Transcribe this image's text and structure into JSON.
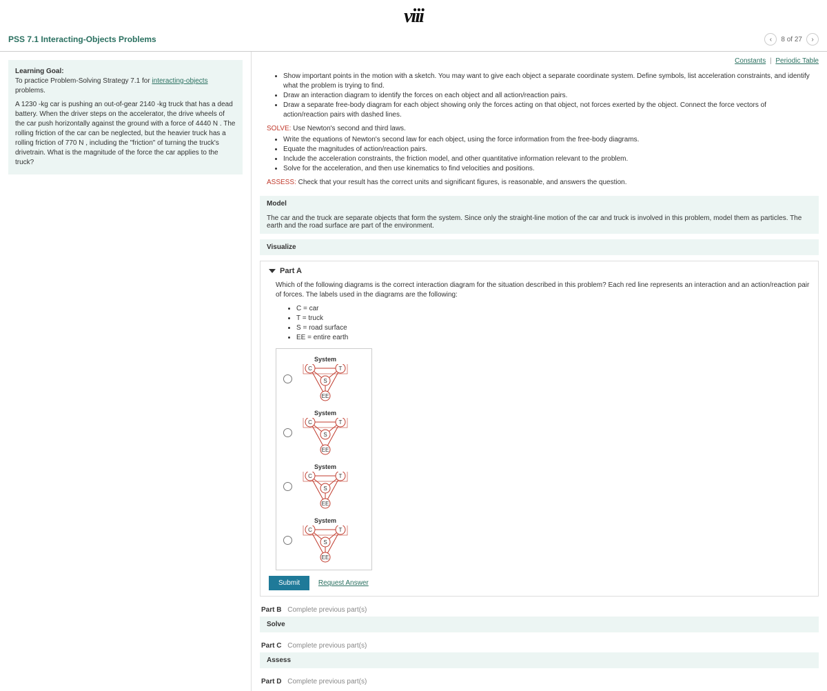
{
  "logo": "viii",
  "header": {
    "title": "PSS 7.1 Interacting-Objects Problems",
    "page_label": "8 of 27",
    "prev": "‹",
    "next": "›"
  },
  "links": {
    "constants": "Constants",
    "sep": " | ",
    "periodic": "Periodic Table"
  },
  "goal": {
    "heading": "Learning Goal:",
    "line1a": "To practice Problem-Solving Strategy 7.1 for ",
    "line1b": "interacting-objects",
    "line1c": " problems.",
    "para": "A 1230 -kg car is pushing an out-of-gear 2140 -kg truck that has a dead battery. When the driver steps on the accelerator, the drive wheels of the car push horizontally against the ground with a force of 4440 N . The rolling friction of the car can be neglected, but the heavier truck has a rolling friction of 770 N , including the \"friction\" of turning the truck's drivetrain. What is the magnitude of the force the car applies to the truck?"
  },
  "instr": {
    "b1": "Show important points in the motion with a sketch. You may want to give  each object a separate coordinate system. Define symbols, list acceleration constraints, and identify what the problem is trying to find.",
    "b2": "Draw an interaction diagram to identify the forces on each object and all action/reaction pairs.",
    "b3": "Draw a separate free-body diagram for each object showing only the forces acting on that object, not forces exerted by the object. Connect the force vectors of action/reaction pairs with dashed lines.",
    "solve_label": "SOLVE:",
    "solve_text": " Use Newton's second and third laws.",
    "s1": "Write the equations of Newton's second law for each object, using the force  information from the free-body diagrams.",
    "s2": "Equate the magnitudes of action/reaction pairs.",
    "s3": "Include the acceleration constraints, the friction model, and other quantitative information relevant to the problem.",
    "s4": "Solve for the acceleration, and then use kinematics to find velocities and positions.",
    "assess_label": "ASSESS:",
    "assess_text": " Check that your result has the correct units and significant figures, is reasonable, and answers the question."
  },
  "model": {
    "title": "Model",
    "body": "The car and the truck are separate objects that form the system. Since only the straight-line motion of the car and truck is involved in this problem, model them as particles. The earth and the road surface are part of the environment."
  },
  "visualize": {
    "title": "Visualize"
  },
  "partA": {
    "title": "Part A",
    "question": "Which of the following diagrams is the correct interaction diagram for the situation described in this problem? Each red line represents an interaction and an action/reaction pair of forces. The labels used in the diagrams are the following:",
    "legend": {
      "c": "C = car",
      "t": "T = truck",
      "s": "S = road surface",
      "ee": "EE = entire earth"
    },
    "system": "System",
    "nodes": {
      "c": "C",
      "t": "T",
      "s": "S",
      "ee": "EE"
    },
    "submit": "Submit",
    "request": "Request Answer",
    "diagram_style": {
      "node_radius": 7,
      "node_stroke": "#c0392b",
      "node_fill": "#fff",
      "line_color": "#c0392b",
      "sys_stroke": "#c0392b",
      "text_color": "#333",
      "font_size": 8
    }
  },
  "partB": {
    "label": "Part B",
    "status": "Complete previous part(s)"
  },
  "solve": {
    "title": "Solve"
  },
  "partC": {
    "label": "Part C",
    "status": "Complete previous part(s)"
  },
  "assess": {
    "title": "Assess"
  },
  "partD": {
    "label": "Part D",
    "status": "Complete previous part(s)"
  }
}
